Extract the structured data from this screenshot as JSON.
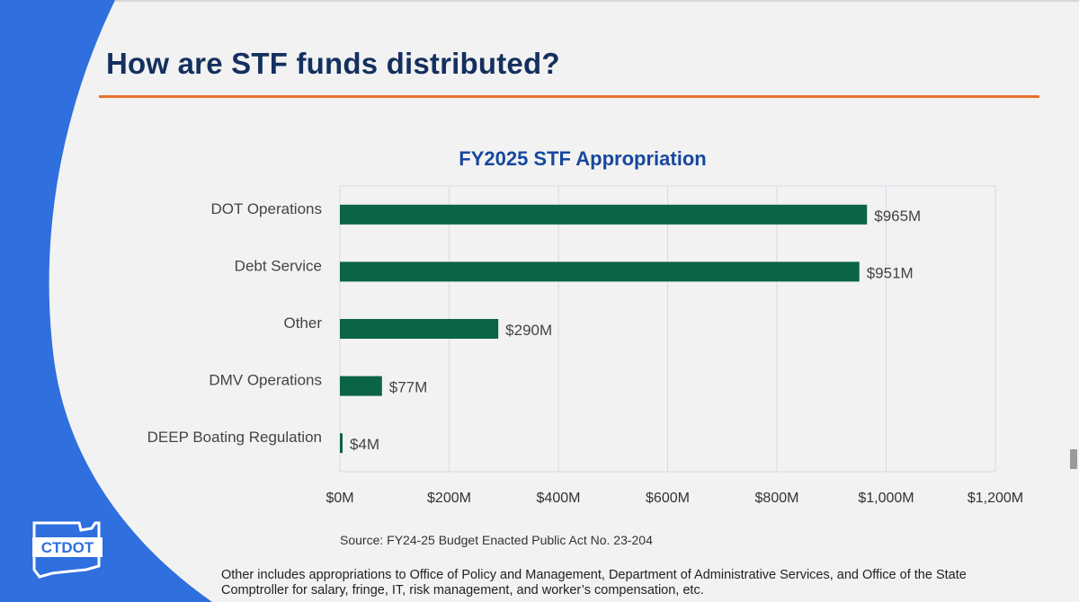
{
  "slide": {
    "title": "How are STF funds distributed?",
    "source": "Source: FY24-25 Budget Enacted Public Act No. 23-204",
    "footnote_line1": "Other includes appropriations to Office of Policy and Management, Department of Administrative Services, and Office of the State",
    "footnote_line2": "Comptroller for salary, fringe, IT, risk management, and worker’s compensation, etc.",
    "logo_text": "CTDOT"
  },
  "colors": {
    "title": "#14305f",
    "accent_rule": "#e8722a",
    "swoosh": "#2f6fde",
    "bar": "#0b6448",
    "chart_title": "#17479e"
  },
  "chart_data": {
    "type": "bar",
    "orientation": "horizontal",
    "title": "FY2025 STF Appropriation",
    "categories": [
      "DOT Operations",
      "Debt Service",
      "Other",
      "DMV Operations",
      "DEEP Boating Regulation"
    ],
    "values": [
      965,
      951,
      290,
      77,
      4
    ],
    "value_labels": [
      "$965M",
      "$951M",
      "$290M",
      "$77M",
      "$4M"
    ],
    "units": "$M",
    "xlim": [
      0,
      1200
    ],
    "xticks": [
      0,
      200,
      400,
      600,
      800,
      1000,
      1200
    ],
    "xtick_labels": [
      "$0M",
      "$200M",
      "$400M",
      "$600M",
      "$800M",
      "$1,000M",
      "$1,200M"
    ],
    "xlabel": "",
    "ylabel": "",
    "grid": true
  }
}
